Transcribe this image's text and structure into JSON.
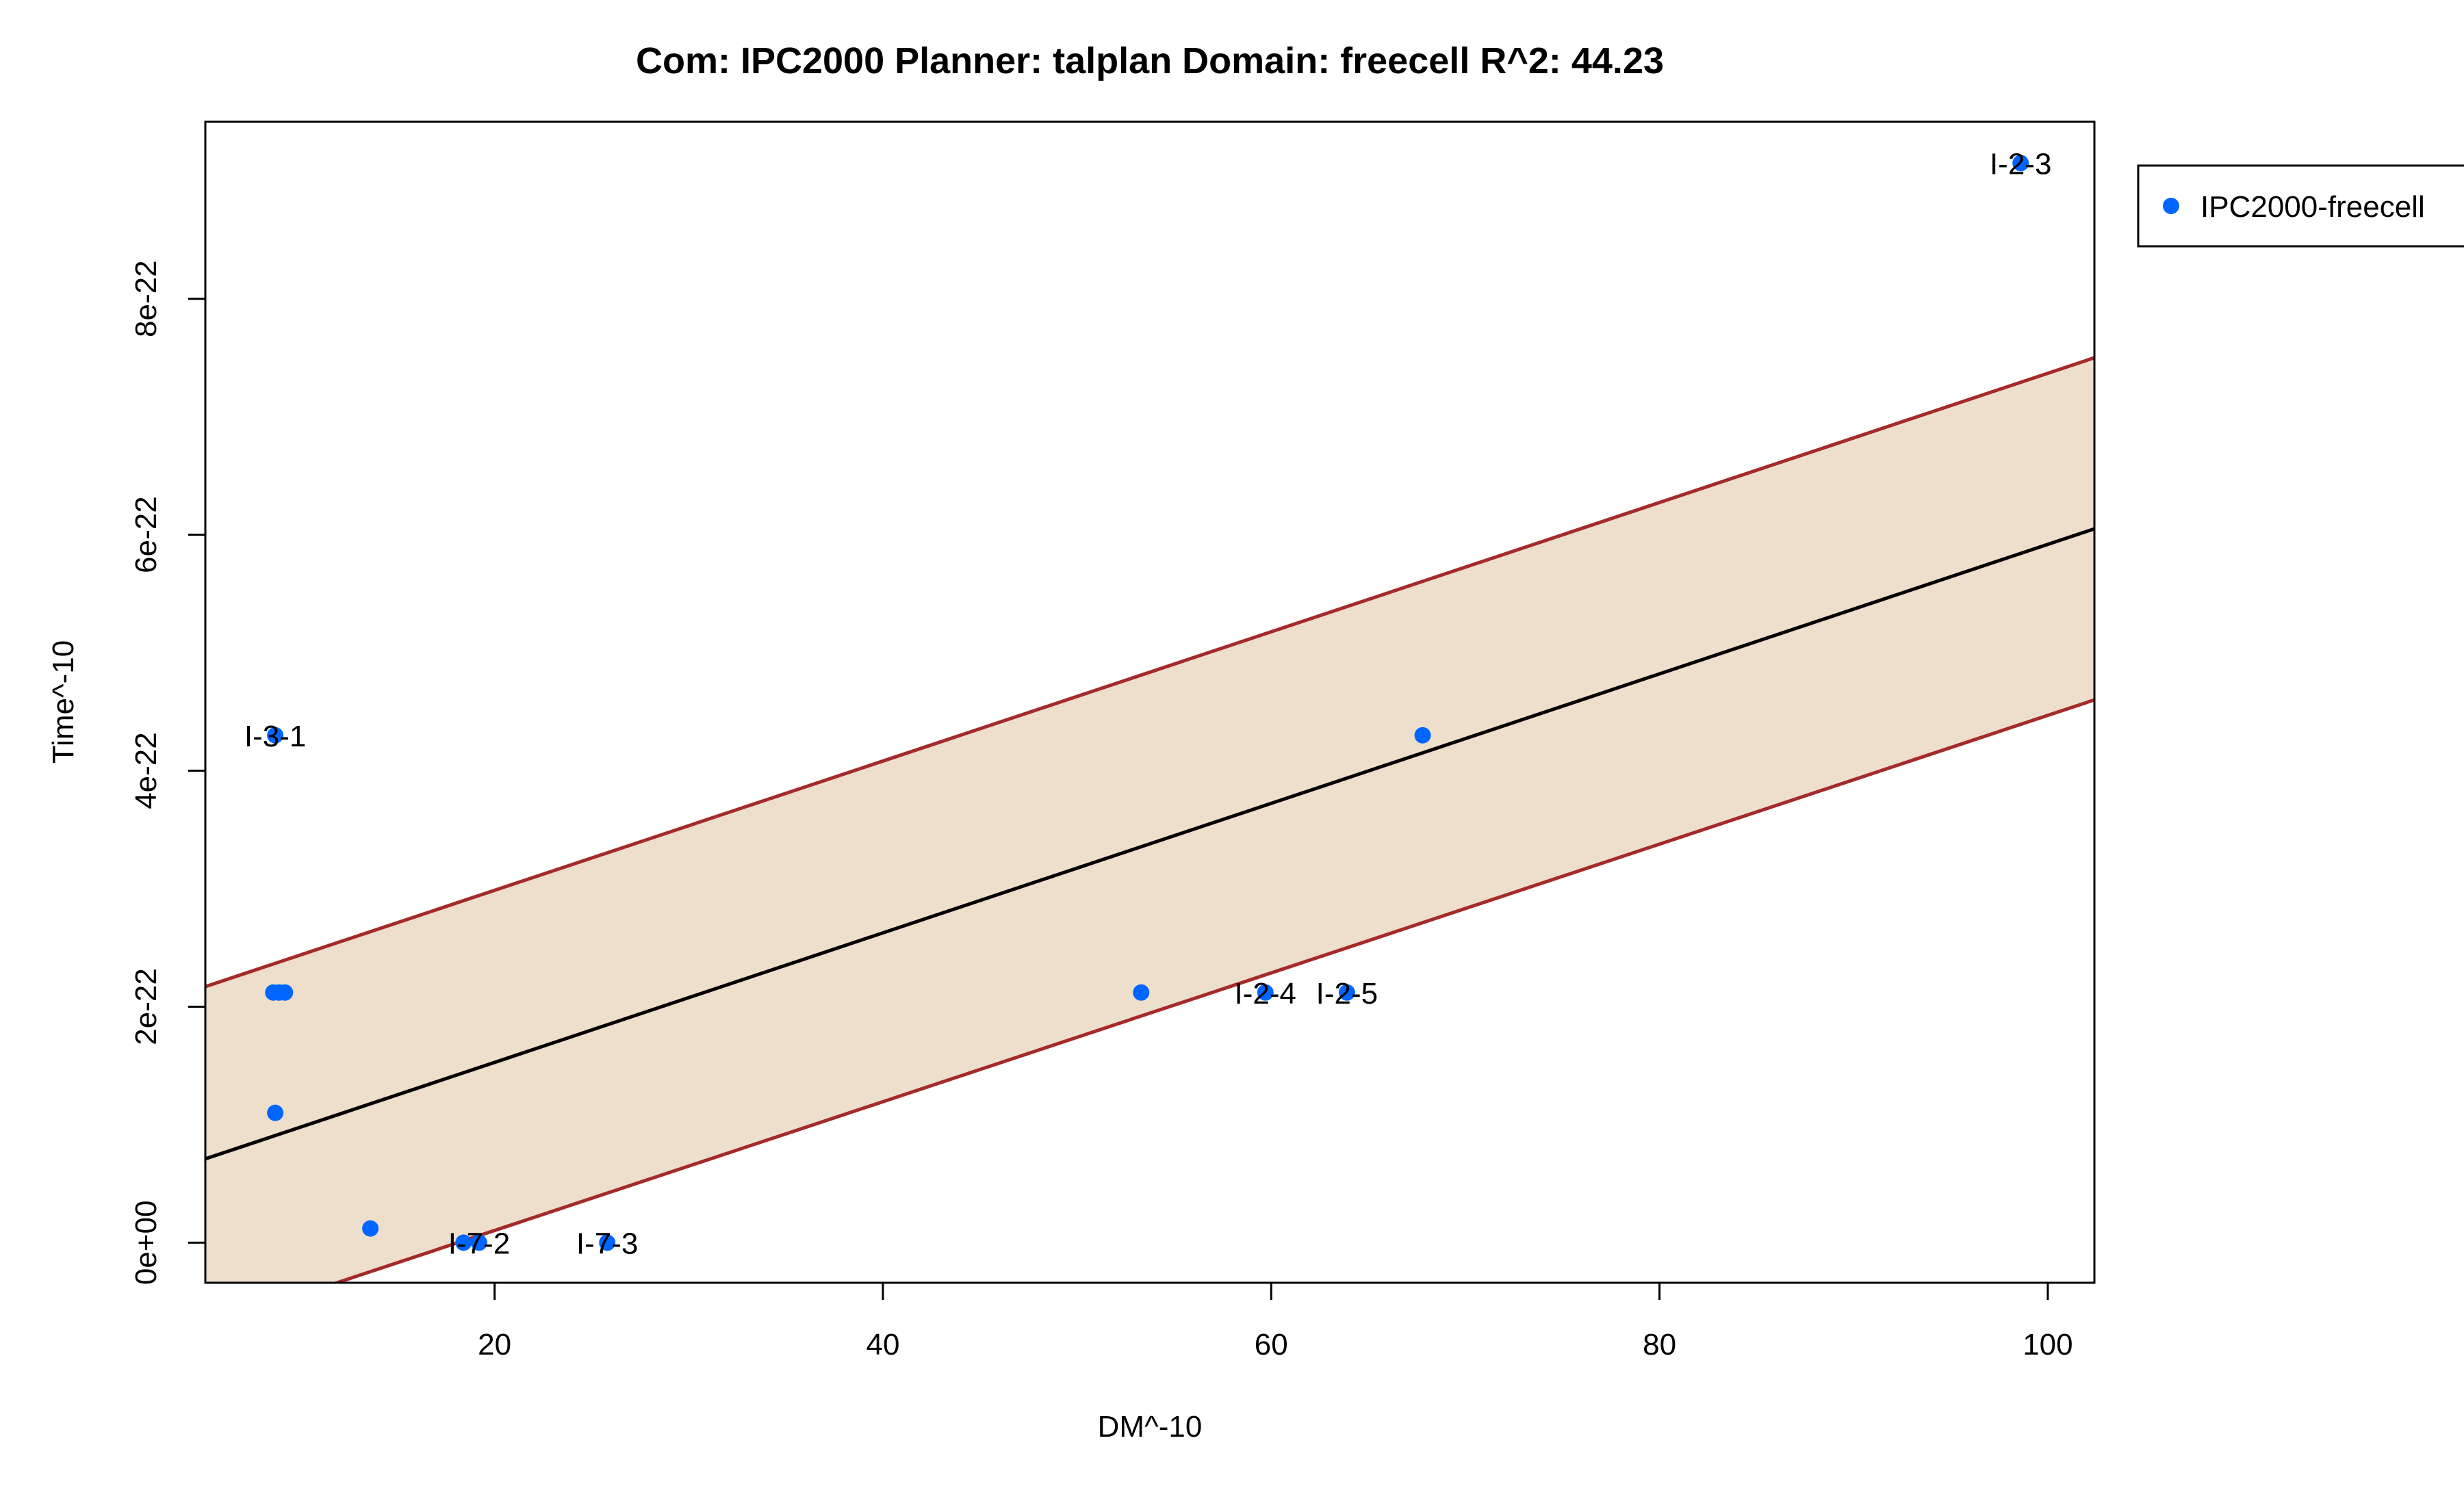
{
  "chart_data": {
    "type": "scatter",
    "title": "Com: IPC2000 Planner: talplan Domain: freecell R^2: 44.23",
    "xlabel": "DM^-10",
    "ylabel": "Time^-10",
    "xlim": [
      5.1,
      102.4
    ],
    "ylim": [
      -3.4e-23,
      9.5e-22
    ],
    "x_ticks": [
      20,
      40,
      60,
      80,
      100
    ],
    "x_tick_labels": [
      "20",
      "40",
      "60",
      "80",
      "100"
    ],
    "y_ticks": [
      0,
      2e-22,
      4e-22,
      6e-22,
      8e-22
    ],
    "y_tick_labels": [
      "0e+00",
      "2e-22",
      "4e-22",
      "6e-22",
      "8e-22"
    ],
    "grid": false,
    "legend": {
      "position": "right",
      "entries": [
        "IPC2000-freecell"
      ]
    },
    "series": [
      {
        "name": "IPC2000-freecell",
        "color": "#0066FF",
        "points": [
          {
            "x": 98.6,
            "y": 9.15e-22,
            "label": "I-2-3"
          },
          {
            "x": 8.7,
            "y": 4.3e-22,
            "label": "I-3-1"
          },
          {
            "x": 67.8,
            "y": 4.3e-22,
            "label": ""
          },
          {
            "x": 8.6,
            "y": 2.12e-22,
            "label": ""
          },
          {
            "x": 8.9,
            "y": 2.12e-22,
            "label": ""
          },
          {
            "x": 9.2,
            "y": 2.12e-22,
            "label": ""
          },
          {
            "x": 53.3,
            "y": 2.12e-22,
            "label": ""
          },
          {
            "x": 59.7,
            "y": 2.12e-22,
            "label": "I-2-4"
          },
          {
            "x": 63.9,
            "y": 2.12e-22,
            "label": "I-2-5"
          },
          {
            "x": 8.7,
            "y": 1.1e-22,
            "label": ""
          },
          {
            "x": 13.6,
            "y": 1.2e-23,
            "label": ""
          },
          {
            "x": 18.4,
            "y": 0,
            "label": ""
          },
          {
            "x": 19.2,
            "y": 0,
            "label": "I-7-2"
          },
          {
            "x": 25.8,
            "y": 0,
            "label": "I-7-3"
          }
        ]
      }
    ],
    "fit_line": {
      "x": [
        5.1,
        102.4
      ],
      "y": [
        7.1e-23,
        6.05e-22
      ],
      "color": "#000000"
    },
    "band": {
      "x": [
        5.1,
        102.4
      ],
      "upper": [
        2.17e-22,
        7.5e-22
      ],
      "lower": [
        -7.1e-23,
        4.6e-22
      ],
      "fill": "#EEDFCC",
      "stroke": "#A52A2A"
    }
  }
}
